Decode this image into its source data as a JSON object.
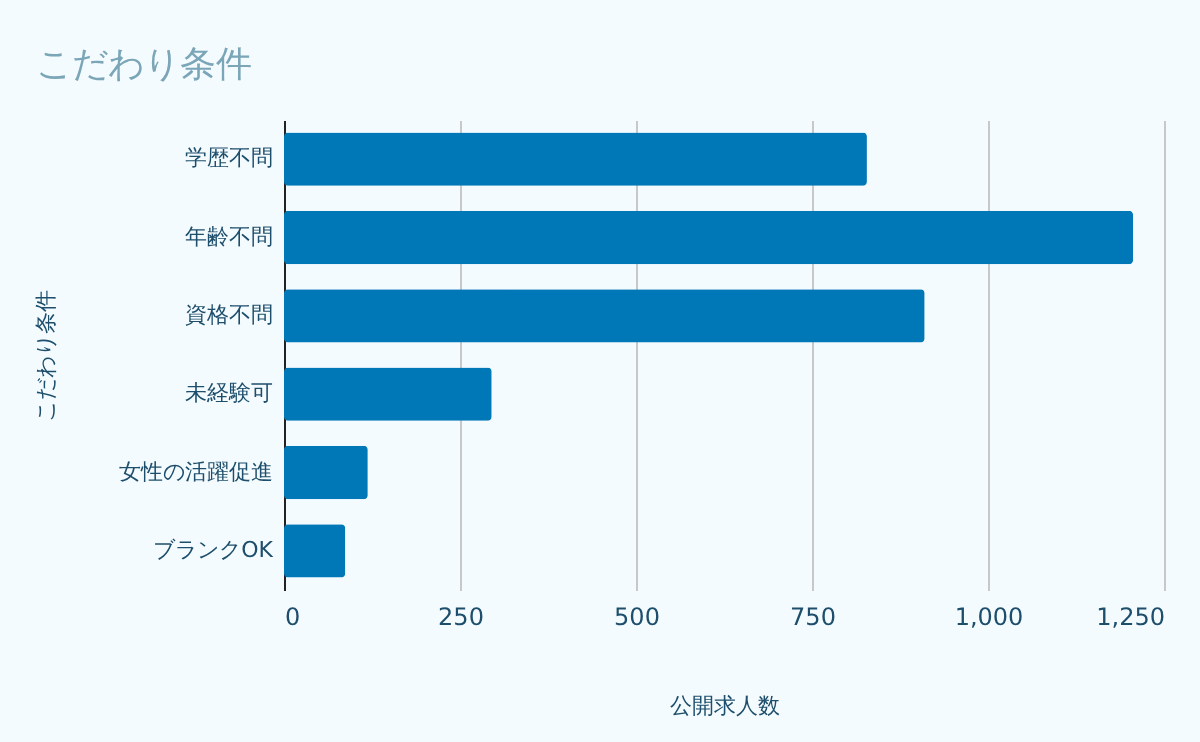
{
  "chart_data": {
    "type": "bar",
    "orientation": "horizontal",
    "title": "こだわり条件",
    "xlabel": "公開求人数",
    "ylabel": "こだわり条件",
    "categories": [
      "学歴不問",
      "年齢不問",
      "資格不問",
      "未経験可",
      "女性の活躍促進",
      "ブランクOK"
    ],
    "values": [
      828,
      1206,
      910,
      295,
      119,
      87
    ],
    "color": "#0077b6",
    "xlim": [
      0,
      1250
    ],
    "xticks": [
      0,
      250,
      500,
      750,
      {
        "value": 1000,
        "label": "1,000"
      },
      {
        "value": 1250,
        "label": "1,250"
      }
    ],
    "grid": "x"
  }
}
